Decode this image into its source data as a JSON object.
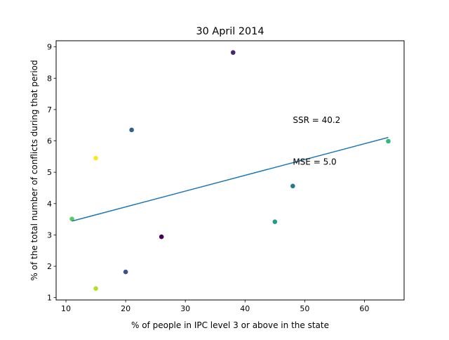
{
  "chart_data": {
    "type": "scatter",
    "title": "30 April 2014",
    "xlabel": "% of people in IPC level 3 or above in the state",
    "ylabel": "% of the total number of conflicts during that period",
    "xlim": [
      8.35,
      66.65
    ],
    "ylim": [
      0.925,
      9.195
    ],
    "xticks": [
      10,
      20,
      30,
      40,
      50,
      60
    ],
    "yticks": [
      1,
      2,
      3,
      4,
      5,
      6,
      7,
      8,
      9
    ],
    "grid": false,
    "legend": "none",
    "points": [
      {
        "x": 38,
        "y": 8.82,
        "color": "#482475"
      },
      {
        "x": 21,
        "y": 6.35,
        "color": "#355f8d"
      },
      {
        "x": 15,
        "y": 5.45,
        "color": "#fde725"
      },
      {
        "x": 64,
        "y": 5.99,
        "color": "#35b779"
      },
      {
        "x": 48,
        "y": 4.56,
        "color": "#2a788e"
      },
      {
        "x": 11,
        "y": 3.51,
        "color": "#5ec962"
      },
      {
        "x": 45,
        "y": 3.42,
        "color": "#1f9e89"
      },
      {
        "x": 26,
        "y": 2.94,
        "color": "#440154"
      },
      {
        "x": 20,
        "y": 1.82,
        "color": "#3b528b"
      },
      {
        "x": 15,
        "y": 1.29,
        "color": "#b5de2b"
      }
    ],
    "fit_line": {
      "x": [
        11,
        64
      ],
      "y": [
        3.44,
        6.11
      ],
      "color": "#1f77b4"
    },
    "annotations": [
      {
        "text": "SSR = 40.2",
        "x": 48,
        "y": 6.66
      },
      {
        "text": "MSE = 5.0",
        "x": 48,
        "y": 5.33
      }
    ]
  }
}
